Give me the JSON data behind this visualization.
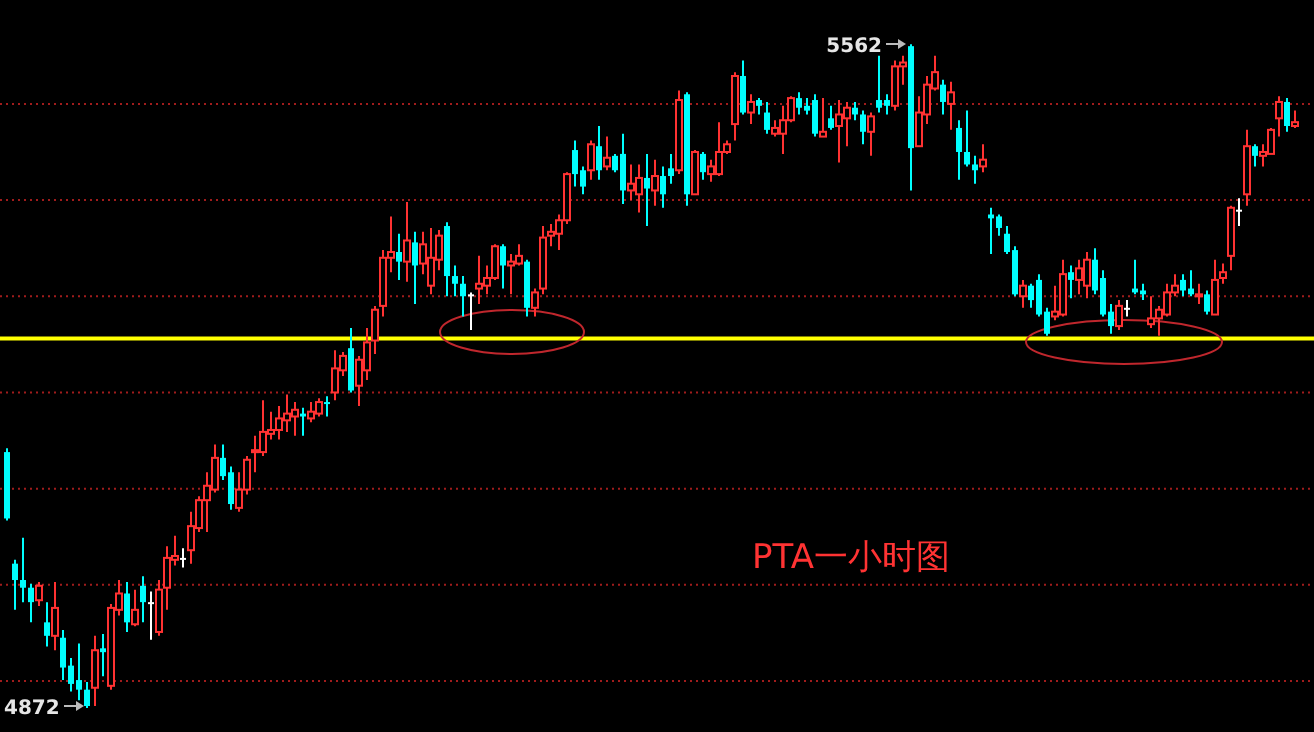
{
  "chart_data": {
    "type": "candlestick",
    "categories": [
      null,
      null,
      null,
      null,
      null,
      null,
      null,
      null,
      null,
      null,
      null,
      null,
      null,
      null,
      null,
      null,
      null,
      null,
      null,
      null,
      null,
      null,
      null,
      null,
      null,
      null,
      null,
      null,
      null,
      null,
      null,
      null,
      null,
      null,
      null,
      null,
      null,
      null,
      null,
      null,
      null,
      null,
      null,
      null,
      null,
      null,
      null,
      null,
      null,
      null,
      null,
      null,
      null,
      null,
      null,
      null,
      null,
      null,
      null,
      null,
      null,
      null,
      null,
      null,
      null,
      null,
      null,
      null,
      null,
      null,
      null,
      null,
      null,
      null,
      null,
      null,
      null,
      null,
      null,
      null,
      null,
      null,
      null,
      null,
      null,
      null,
      null,
      null,
      null,
      null,
      null,
      null,
      null,
      null,
      null,
      null,
      null,
      null,
      null,
      null,
      null,
      null,
      null,
      null,
      null,
      null,
      null,
      null,
      null,
      null,
      null,
      null,
      null,
      null,
      null,
      null,
      null,
      null,
      null,
      null,
      null,
      null,
      null,
      null,
      null,
      null,
      null,
      null,
      null,
      null,
      null,
      null,
      null,
      null,
      null,
      null,
      null,
      null,
      null,
      null,
      null,
      null,
      null,
      null,
      null,
      null,
      null,
      null,
      null,
      null,
      null,
      null,
      null,
      null,
      null,
      null,
      null,
      null,
      null,
      null,
      null,
      null
    ],
    "ohlc": [
      [
        5138,
        5142,
        5067,
        5069
      ],
      [
        5022,
        5026,
        4974,
        5005
      ],
      [
        5005,
        5049,
        4982,
        4997
      ],
      [
        4997,
        5001,
        4961,
        4982
      ],
      [
        4984,
        5003,
        4978,
        4999
      ],
      [
        4961,
        4982,
        4936,
        4947
      ],
      [
        4947,
        5003,
        4932,
        4976
      ],
      [
        4945,
        4953,
        4901,
        4914
      ],
      [
        4916,
        4924,
        4889,
        4897
      ],
      [
        4901,
        4939,
        4880,
        4891
      ],
      [
        4891,
        4899,
        4872,
        4874
      ],
      [
        4893,
        4947,
        4874,
        4932
      ],
      [
        4934,
        4949,
        4905,
        4930
      ],
      [
        4895,
        4980,
        4891,
        4976
      ],
      [
        4974,
        5005,
        4968,
        4991
      ],
      [
        4991,
        5003,
        4951,
        4961
      ],
      [
        4959,
        4995,
        4957,
        4974
      ],
      [
        4999,
        5009,
        4961,
        4982
      ],
      [
        4982,
        4993,
        4943,
        4982
      ],
      [
        4951,
        5005,
        4947,
        4995
      ],
      [
        4997,
        5040,
        4974,
        5028
      ],
      [
        5026,
        5051,
        5020,
        5030
      ],
      [
        5028,
        5038,
        5018,
        5028
      ],
      [
        5036,
        5076,
        5022,
        5061
      ],
      [
        5059,
        5092,
        5055,
        5088
      ],
      [
        5088,
        5117,
        5055,
        5103
      ],
      [
        5099,
        5146,
        5096,
        5132
      ],
      [
        5132,
        5146,
        5109,
        5113
      ],
      [
        5117,
        5123,
        5078,
        5084
      ],
      [
        5080,
        5117,
        5076,
        5099
      ],
      [
        5099,
        5134,
        5094,
        5130
      ],
      [
        5138,
        5155,
        5117,
        5140
      ],
      [
        5138,
        5192,
        5134,
        5159
      ],
      [
        5157,
        5180,
        5151,
        5161
      ],
      [
        5161,
        5186,
        5151,
        5173
      ],
      [
        5171,
        5198,
        5159,
        5178
      ],
      [
        5175,
        5190,
        5155,
        5182
      ],
      [
        5178,
        5184,
        5155,
        5175
      ],
      [
        5173,
        5190,
        5169,
        5180
      ],
      [
        5178,
        5194,
        5175,
        5190
      ],
      [
        5190,
        5196,
        5175,
        5188
      ],
      [
        5200,
        5244,
        5192,
        5225
      ],
      [
        5223,
        5242,
        5217,
        5238
      ],
      [
        5246,
        5267,
        5200,
        5202
      ],
      [
        5207,
        5238,
        5186,
        5234
      ],
      [
        5223,
        5267,
        5213,
        5252
      ],
      [
        5254,
        5290,
        5240,
        5286
      ],
      [
        5290,
        5348,
        5279,
        5340
      ],
      [
        5340,
        5383,
        5325,
        5346
      ],
      [
        5346,
        5365,
        5317,
        5336
      ],
      [
        5336,
        5398,
        5315,
        5358
      ],
      [
        5356,
        5367,
        5292,
        5332
      ],
      [
        5334,
        5367,
        5323,
        5354
      ],
      [
        5311,
        5371,
        5302,
        5340
      ],
      [
        5338,
        5369,
        5327,
        5363
      ],
      [
        5373,
        5377,
        5300,
        5321
      ],
      [
        5321,
        5332,
        5300,
        5313
      ],
      [
        5313,
        5321,
        5279,
        5300
      ],
      [
        5302,
        5304,
        5265,
        5302
      ],
      [
        5308,
        5342,
        5292,
        5313
      ],
      [
        5311,
        5332,
        5302,
        5319
      ],
      [
        5319,
        5354,
        5317,
        5352
      ],
      [
        5352,
        5354,
        5308,
        5332
      ],
      [
        5332,
        5344,
        5302,
        5336
      ],
      [
        5334,
        5354,
        5332,
        5342
      ],
      [
        5336,
        5338,
        5279,
        5288
      ],
      [
        5288,
        5308,
        5279,
        5304
      ],
      [
        5308,
        5373,
        5302,
        5361
      ],
      [
        5363,
        5375,
        5352,
        5367
      ],
      [
        5365,
        5385,
        5348,
        5379
      ],
      [
        5379,
        5429,
        5375,
        5427
      ],
      [
        5452,
        5462,
        5414,
        5427
      ],
      [
        5431,
        5435,
        5406,
        5414
      ],
      [
        5431,
        5462,
        5421,
        5458
      ],
      [
        5456,
        5477,
        5421,
        5431
      ],
      [
        5435,
        5466,
        5431,
        5444
      ],
      [
        5446,
        5448,
        5429,
        5431
      ],
      [
        5448,
        5469,
        5396,
        5410
      ],
      [
        5410,
        5437,
        5400,
        5417
      ],
      [
        5406,
        5437,
        5387,
        5423
      ],
      [
        5423,
        5448,
        5373,
        5412
      ],
      [
        5410,
        5442,
        5394,
        5425
      ],
      [
        5425,
        5435,
        5392,
        5406
      ],
      [
        5433,
        5448,
        5417,
        5425
      ],
      [
        5431,
        5514,
        5427,
        5504
      ],
      [
        5510,
        5512,
        5394,
        5406
      ],
      [
        5406,
        5452,
        5406,
        5450
      ],
      [
        5448,
        5450,
        5421,
        5429
      ],
      [
        5427,
        5442,
        5419,
        5435
      ],
      [
        5427,
        5481,
        5425,
        5450
      ],
      [
        5450,
        5462,
        5448,
        5458
      ],
      [
        5479,
        5533,
        5462,
        5529
      ],
      [
        5529,
        5545,
        5489,
        5491
      ],
      [
        5491,
        5510,
        5479,
        5502
      ],
      [
        5504,
        5506,
        5489,
        5498
      ],
      [
        5491,
        5502,
        5469,
        5473
      ],
      [
        5469,
        5483,
        5466,
        5475
      ],
      [
        5469,
        5498,
        5448,
        5483
      ],
      [
        5483,
        5508,
        5481,
        5506
      ],
      [
        5506,
        5512,
        5489,
        5496
      ],
      [
        5498,
        5506,
        5489,
        5493
      ],
      [
        5504,
        5510,
        5466,
        5469
      ],
      [
        5466,
        5506,
        5466,
        5471
      ],
      [
        5485,
        5498,
        5473,
        5475
      ],
      [
        5477,
        5504,
        5439,
        5489
      ],
      [
        5485,
        5502,
        5456,
        5496
      ],
      [
        5496,
        5502,
        5483,
        5489
      ],
      [
        5489,
        5493,
        5458,
        5471
      ],
      [
        5471,
        5491,
        5446,
        5487
      ],
      [
        5504,
        5550,
        5491,
        5496
      ],
      [
        5504,
        5510,
        5489,
        5498
      ],
      [
        5498,
        5545,
        5493,
        5539
      ],
      [
        5539,
        5550,
        5520,
        5543
      ],
      [
        5560,
        5562,
        5410,
        5454
      ],
      [
        5456,
        5508,
        5456,
        5491
      ],
      [
        5489,
        5529,
        5479,
        5520
      ],
      [
        5516,
        5550,
        5514,
        5533
      ],
      [
        5520,
        5525,
        5489,
        5502
      ],
      [
        5500,
        5523,
        5473,
        5512
      ],
      [
        5475,
        5483,
        5421,
        5450
      ],
      [
        5450,
        5493,
        5435,
        5437
      ],
      [
        5437,
        5446,
        5417,
        5431
      ],
      [
        5435,
        5458,
        5429,
        5442
      ],
      [
        5385,
        5392,
        5344,
        5381
      ],
      [
        5383,
        5385,
        5363,
        5371
      ],
      [
        5365,
        5373,
        5344,
        5346
      ],
      [
        5348,
        5352,
        5300,
        5302
      ],
      [
        5300,
        5317,
        5288,
        5311
      ],
      [
        5311,
        5313,
        5288,
        5296
      ],
      [
        5317,
        5323,
        5279,
        5281
      ],
      [
        5284,
        5288,
        5259,
        5261
      ],
      [
        5279,
        5311,
        5275,
        5284
      ],
      [
        5281,
        5338,
        5279,
        5323
      ],
      [
        5325,
        5332,
        5298,
        5317
      ],
      [
        5317,
        5338,
        5302,
        5329
      ],
      [
        5311,
        5346,
        5298,
        5338
      ],
      [
        5338,
        5350,
        5302,
        5306
      ],
      [
        5319,
        5327,
        5279,
        5281
      ],
      [
        5284,
        5292,
        5261,
        5269
      ],
      [
        5269,
        5296,
        5265,
        5290
      ],
      [
        5288,
        5296,
        5279,
        5288
      ],
      [
        5308,
        5338,
        5302,
        5304
      ],
      [
        5306,
        5313,
        5296,
        5302
      ],
      [
        5271,
        5300,
        5267,
        5277
      ],
      [
        5277,
        5290,
        5259,
        5286
      ],
      [
        5281,
        5313,
        5279,
        5304
      ],
      [
        5304,
        5323,
        5300,
        5311
      ],
      [
        5317,
        5323,
        5300,
        5306
      ],
      [
        5308,
        5327,
        5300,
        5302
      ],
      [
        5300,
        5313,
        5292,
        5302
      ],
      [
        5302,
        5306,
        5281,
        5284
      ],
      [
        5281,
        5338,
        5281,
        5317
      ],
      [
        5319,
        5334,
        5313,
        5325
      ],
      [
        5342,
        5394,
        5327,
        5392
      ],
      [
        5390,
        5402,
        5373,
        5390
      ],
      [
        5406,
        5473,
        5394,
        5456
      ],
      [
        5456,
        5458,
        5435,
        5446
      ],
      [
        5446,
        5458,
        5435,
        5450
      ],
      [
        5448,
        5475,
        5448,
        5473
      ],
      [
        5485,
        5508,
        5466,
        5502
      ],
      [
        5502,
        5506,
        5471,
        5477
      ],
      [
        5477,
        5493,
        5475,
        5481
      ]
    ],
    "colors": [
      "#00ffff",
      "#00ffff",
      "#00ffff",
      "#00ffff",
      "#ff3232",
      "#00ffff",
      "#ff3232",
      "#00ffff",
      "#00ffff",
      "#00ffff",
      "#00ffff",
      "#ff3232",
      "#00ffff",
      "#ff3232",
      "#ff3232",
      "#00ffff",
      "#ff3232",
      "#00ffff",
      "#ffffff",
      "#ff3232",
      "#ff3232",
      "#ff3232",
      "#ffffff",
      "#ff3232",
      "#ff3232",
      "#ff3232",
      "#ff3232",
      "#00ffff",
      "#00ffff",
      "#ff3232",
      "#ff3232",
      "#ff3232",
      "#ff3232",
      "#ff3232",
      "#ff3232",
      "#ff3232",
      "#ff3232",
      "#00ffff",
      "#ff3232",
      "#ff3232",
      "#00ffff",
      "#ff3232",
      "#ff3232",
      "#00ffff",
      "#ff3232",
      "#ff3232",
      "#ff3232",
      "#ff3232",
      "#ff3232",
      "#00ffff",
      "#ff3232",
      "#00ffff",
      "#ff3232",
      "#ff3232",
      "#ff3232",
      "#00ffff",
      "#00ffff",
      "#00ffff",
      "#ffffff",
      "#ff3232",
      "#ff3232",
      "#ff3232",
      "#00ffff",
      "#ff3232",
      "#ff3232",
      "#00ffff",
      "#ff3232",
      "#ff3232",
      "#ff3232",
      "#ff3232",
      "#ff3232",
      "#00ffff",
      "#00ffff",
      "#ff3232",
      "#00ffff",
      "#ff3232",
      "#00ffff",
      "#00ffff",
      "#ff3232",
      "#ff3232",
      "#00ffff",
      "#ff3232",
      "#00ffff",
      "#00ffff",
      "#ff3232",
      "#00ffff",
      "#ff3232",
      "#00ffff",
      "#ff3232",
      "#ff3232",
      "#ff3232",
      "#ff3232",
      "#00ffff",
      "#ff3232",
      "#00ffff",
      "#00ffff",
      "#ff3232",
      "#ff3232",
      "#ff3232",
      "#00ffff",
      "#00ffff",
      "#00ffff",
      "#ff3232",
      "#00ffff",
      "#ff3232",
      "#ff3232",
      "#00ffff",
      "#00ffff",
      "#ff3232",
      "#00ffff",
      "#00ffff",
      "#ff3232",
      "#ff3232",
      "#00ffff",
      "#ff3232",
      "#ff3232",
      "#ff3232",
      "#00ffff",
      "#ff3232",
      "#00ffff",
      "#00ffff",
      "#00ffff",
      "#ff3232",
      "#00ffff",
      "#00ffff",
      "#00ffff",
      "#00ffff",
      "#ff3232",
      "#00ffff",
      "#00ffff",
      "#00ffff",
      "#ff3232",
      "#ff3232",
      "#00ffff",
      "#ff3232",
      "#ff3232",
      "#00ffff",
      "#00ffff",
      "#00ffff",
      "#ff3232",
      "#ffffff",
      "#00ffff",
      "#00ffff",
      "#ff3232",
      "#ff3232",
      "#ff3232",
      "#ff3232",
      "#00ffff",
      "#00ffff",
      "#ff3232",
      "#00ffff",
      "#ff3232",
      "#ff3232",
      "#ff3232",
      "#ffffff",
      "#ff3232",
      "#00ffff",
      "#ff3232",
      "#ff3232",
      "#ff3232",
      "#00ffff",
      "#ff3232"
    ],
    "ylim": [
      4847,
      5608
    ],
    "yticks": [
      {
        "value": 4900,
        "label": null
      },
      {
        "value": 5000,
        "label": null
      },
      {
        "value": 5100,
        "label": null
      },
      {
        "value": 5200,
        "label": null
      },
      {
        "value": 5300,
        "label": null
      },
      {
        "value": 5400,
        "label": null
      },
      {
        "value": 5500,
        "label": null
      }
    ],
    "grid": "y",
    "ref_lines": [
      {
        "axis": "y",
        "value": 5256,
        "color": "#ffff00"
      }
    ],
    "annotations": [
      "5562",
      "4872",
      "PTA一小时图"
    ]
  }
}
